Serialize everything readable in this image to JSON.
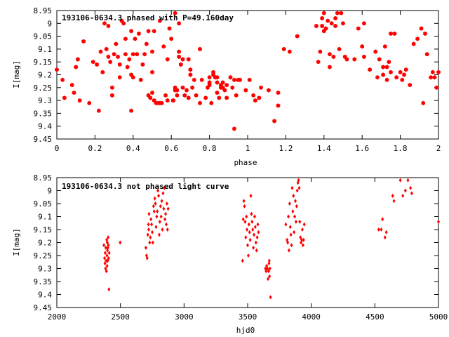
{
  "chart_data": [
    {
      "type": "scatter",
      "title": "193106-0634.3 phased with P=49.160day",
      "xlabel": "phase",
      "ylabel": "I[mag]",
      "xlim": [
        0,
        2
      ],
      "ylim": [
        8.95,
        9.45
      ],
      "y_reversed": true,
      "grid": false,
      "marker": "hexagon",
      "color": "#ff0000",
      "xticks": [
        "0",
        "0.2",
        "0.4",
        "0.6",
        "0.8",
        "1",
        "1.2",
        "1.4",
        "1.6",
        "1.8",
        "2"
      ],
      "yticks": [
        "8.95",
        "9",
        "9.05",
        "9.1",
        "9.15",
        "9.2",
        "9.25",
        "9.3",
        "9.35",
        "9.4",
        "9.45"
      ],
      "points": [
        [
          0.0,
          9.18
        ],
        [
          0.03,
          9.22
        ],
        [
          0.04,
          9.29
        ],
        [
          0.08,
          9.24
        ],
        [
          0.09,
          9.27
        ],
        [
          0.1,
          9.17
        ],
        [
          0.11,
          9.14
        ],
        [
          0.12,
          9.3
        ],
        [
          0.14,
          9.07
        ],
        [
          0.17,
          9.31
        ],
        [
          0.19,
          9.15
        ],
        [
          0.21,
          9.16
        ],
        [
          0.22,
          9.34
        ],
        [
          0.23,
          9.11
        ],
        [
          0.24,
          9.19
        ],
        [
          0.25,
          9.0
        ],
        [
          0.26,
          9.1
        ],
        [
          0.27,
          9.01
        ],
        [
          0.27,
          9.13
        ],
        [
          0.28,
          9.15
        ],
        [
          0.29,
          9.25
        ],
        [
          0.29,
          9.28
        ],
        [
          0.3,
          9.12
        ],
        [
          0.31,
          9.08
        ],
        [
          0.32,
          9.13
        ],
        [
          0.33,
          9.16
        ],
        [
          0.33,
          9.21
        ],
        [
          0.34,
          8.99
        ],
        [
          0.35,
          9.0
        ],
        [
          0.36,
          9.06
        ],
        [
          0.36,
          9.12
        ],
        [
          0.37,
          9.17
        ],
        [
          0.38,
          9.14
        ],
        [
          0.39,
          9.03
        ],
        [
          0.39,
          9.2
        ],
        [
          0.39,
          9.34
        ],
        [
          0.4,
          9.12
        ],
        [
          0.4,
          9.21
        ],
        [
          0.41,
          9.06
        ],
        [
          0.42,
          9.12
        ],
        [
          0.43,
          9.04
        ],
        [
          0.44,
          9.22
        ],
        [
          0.45,
          9.16
        ],
        [
          0.46,
          9.12
        ],
        [
          0.47,
          9.08
        ],
        [
          0.48,
          9.03
        ],
        [
          0.48,
          9.28
        ],
        [
          0.49,
          9.29
        ],
        [
          0.5,
          9.11
        ],
        [
          0.5,
          9.19
        ],
        [
          0.5,
          9.27
        ],
        [
          0.51,
          9.03
        ],
        [
          0.51,
          9.3
        ],
        [
          0.52,
          9.31
        ],
        [
          0.53,
          9.31
        ],
        [
          0.54,
          8.99
        ],
        [
          0.54,
          9.31
        ],
        [
          0.55,
          9.31
        ],
        [
          0.56,
          9.09
        ],
        [
          0.57,
          9.28
        ],
        [
          0.58,
          9.3
        ],
        [
          0.58,
          9.14
        ],
        [
          0.59,
          9.02
        ],
        [
          0.6,
          9.06
        ],
        [
          0.61,
          9.3
        ],
        [
          0.61,
          9.3
        ],
        [
          0.61,
          9.3
        ],
        [
          0.62,
          8.96
        ],
        [
          0.62,
          9.25
        ],
        [
          0.62,
          9.26
        ],
        [
          0.63,
          9.28
        ],
        [
          0.63,
          9.26
        ],
        [
          0.64,
          9.0
        ],
        [
          0.64,
          9.13
        ],
        [
          0.64,
          9.11
        ],
        [
          0.65,
          9.16
        ],
        [
          0.66,
          9.14
        ],
        [
          0.66,
          9.25
        ],
        [
          0.67,
          9.28
        ],
        [
          0.68,
          9.26
        ],
        [
          0.69,
          9.14
        ],
        [
          0.69,
          9.29
        ],
        [
          0.7,
          9.18
        ],
        [
          0.7,
          9.2
        ],
        [
          0.71,
          9.25
        ],
        [
          0.72,
          9.22
        ],
        [
          0.73,
          9.28
        ],
        [
          0.75,
          9.31
        ],
        [
          0.75,
          9.1
        ],
        [
          0.76,
          9.22
        ],
        [
          0.78,
          9.29
        ],
        [
          0.79,
          9.25
        ],
        [
          0.8,
          9.21
        ],
        [
          0.8,
          9.23
        ],
        [
          0.8,
          9.24
        ],
        [
          0.81,
          9.31
        ],
        [
          0.82,
          9.19
        ],
        [
          0.82,
          9.2
        ],
        [
          0.83,
          9.21
        ],
        [
          0.84,
          9.21
        ],
        [
          0.84,
          9.23
        ],
        [
          0.84,
          9.27
        ],
        [
          0.85,
          9.29
        ],
        [
          0.86,
          9.25
        ],
        [
          0.86,
          9.24
        ],
        [
          0.87,
          9.23
        ],
        [
          0.87,
          9.25
        ],
        [
          0.88,
          9.26
        ],
        [
          0.89,
          9.24
        ],
        [
          0.89,
          9.29
        ],
        [
          0.91,
          9.21
        ],
        [
          0.92,
          9.25
        ],
        [
          0.93,
          9.41
        ],
        [
          0.93,
          9.22
        ],
        [
          0.94,
          9.28
        ],
        [
          0.95,
          9.22
        ],
        [
          0.96,
          9.22
        ],
        [
          0.99,
          9.26
        ],
        [
          1.01,
          9.22
        ],
        [
          1.03,
          9.28
        ],
        [
          1.04,
          9.3
        ],
        [
          1.06,
          9.29
        ],
        [
          1.07,
          9.25
        ],
        [
          1.11,
          9.26
        ],
        [
          1.14,
          9.38
        ],
        [
          1.16,
          9.27
        ],
        [
          1.16,
          9.32
        ],
        [
          1.19,
          9.1
        ],
        [
          1.22,
          9.11
        ],
        [
          1.26,
          9.05
        ],
        [
          1.36,
          9.01
        ],
        [
          1.37,
          9.15
        ],
        [
          1.38,
          9.11
        ],
        [
          1.39,
          9.01
        ],
        [
          1.39,
          8.98
        ],
        [
          1.4,
          9.03
        ],
        [
          1.4,
          8.96
        ],
        [
          1.41,
          9.02
        ],
        [
          1.42,
          8.99
        ],
        [
          1.43,
          9.12
        ],
        [
          1.43,
          9.17
        ],
        [
          1.44,
          9.0
        ],
        [
          1.45,
          9.13
        ],
        [
          1.46,
          9.01
        ],
        [
          1.46,
          8.98
        ],
        [
          1.47,
          8.96
        ],
        [
          1.48,
          9.1
        ],
        [
          1.49,
          8.96
        ],
        [
          1.5,
          9.0
        ],
        [
          1.51,
          9.13
        ],
        [
          1.52,
          9.14
        ],
        [
          1.56,
          9.14
        ],
        [
          1.58,
          9.02
        ],
        [
          1.6,
          9.09
        ],
        [
          1.61,
          9.0
        ],
        [
          1.61,
          9.13
        ],
        [
          1.64,
          9.18
        ],
        [
          1.67,
          9.11
        ],
        [
          1.68,
          9.21
        ],
        [
          1.69,
          9.14
        ],
        [
          1.71,
          9.2
        ],
        [
          1.71,
          9.17
        ],
        [
          1.72,
          9.09
        ],
        [
          1.73,
          9.22
        ],
        [
          1.73,
          9.17
        ],
        [
          1.74,
          9.15
        ],
        [
          1.75,
          9.19
        ],
        [
          1.75,
          9.04
        ],
        [
          1.77,
          9.04
        ],
        [
          1.78,
          9.21
        ],
        [
          1.8,
          9.19
        ],
        [
          1.81,
          9.22
        ],
        [
          1.82,
          9.2
        ],
        [
          1.83,
          9.18
        ],
        [
          1.85,
          9.24
        ],
        [
          1.87,
          9.08
        ],
        [
          1.89,
          9.06
        ],
        [
          1.91,
          9.02
        ],
        [
          1.92,
          9.31
        ],
        [
          1.93,
          9.04
        ],
        [
          1.94,
          9.12
        ],
        [
          1.96,
          9.21
        ],
        [
          1.97,
          9.19
        ],
        [
          1.98,
          9.21
        ],
        [
          1.99,
          9.25
        ],
        [
          2.0,
          9.19
        ]
      ]
    },
    {
      "type": "scatter",
      "title": "193106-0634.3 not phased light curve",
      "xlabel": "hjd0",
      "ylabel": "I[mag]",
      "xlim": [
        2000,
        5000
      ],
      "ylim": [
        8.95,
        9.45
      ],
      "y_reversed": true,
      "grid": false,
      "marker": "diamond",
      "color": "#ff0000",
      "xticks": [
        "2000",
        "2500",
        "3000",
        "3500",
        "4000",
        "4500",
        "5000"
      ],
      "yticks": [
        "8.95",
        "9",
        "9.05",
        "9.1",
        "9.15",
        "9.2",
        "9.25",
        "9.3",
        "9.35",
        "9.4",
        "9.45"
      ],
      "points": [
        [
          2370,
          9.21
        ],
        [
          2375,
          9.26
        ],
        [
          2378,
          9.28
        ],
        [
          2380,
          9.24
        ],
        [
          2383,
          9.3
        ],
        [
          2385,
          9.22
        ],
        [
          2388,
          9.27
        ],
        [
          2390,
          9.31
        ],
        [
          2392,
          9.19
        ],
        [
          2394,
          9.25
        ],
        [
          2395,
          9.29
        ],
        [
          2397,
          9.2
        ],
        [
          2398,
          9.23
        ],
        [
          2400,
          9.27
        ],
        [
          2402,
          9.22
        ],
        [
          2403,
          9.18
        ],
        [
          2405,
          9.21
        ],
        [
          2407,
          9.26
        ],
        [
          2410,
          9.38
        ],
        [
          2412,
          9.24
        ],
        [
          2498,
          9.2
        ],
        [
          2700,
          9.22
        ],
        [
          2705,
          9.25
        ],
        [
          2710,
          9.26
        ],
        [
          2715,
          9.17
        ],
        [
          2720,
          9.13
        ],
        [
          2722,
          9.15
        ],
        [
          2725,
          9.09
        ],
        [
          2730,
          9.2
        ],
        [
          2735,
          9.18
        ],
        [
          2740,
          9.11
        ],
        [
          2745,
          9.13
        ],
        [
          2750,
          9.16
        ],
        [
          2755,
          9.2
        ],
        [
          2760,
          9.06
        ],
        [
          2765,
          9.08
        ],
        [
          2770,
          9.03
        ],
        [
          2775,
          9.05
        ],
        [
          2780,
          9.14
        ],
        [
          2785,
          9.1
        ],
        [
          2790,
          9.08
        ],
        [
          2795,
          9.0
        ],
        [
          2800,
          9.02
        ],
        [
          2805,
          9.17
        ],
        [
          2810,
          9.12
        ],
        [
          2815,
          9.06
        ],
        [
          2820,
          9.1
        ],
        [
          2825,
          9.04
        ],
        [
          2830,
          9.15
        ],
        [
          2835,
          9.01
        ],
        [
          2840,
          9.07
        ],
        [
          2845,
          8.99
        ],
        [
          2850,
          9.11
        ],
        [
          2855,
          9.09
        ],
        [
          2860,
          9.13
        ],
        [
          2865,
          9.05
        ],
        [
          2870,
          9.15
        ],
        [
          2875,
          9.07
        ],
        [
          3460,
          9.27
        ],
        [
          3465,
          9.11
        ],
        [
          3470,
          9.04
        ],
        [
          3475,
          9.06
        ],
        [
          3480,
          9.12
        ],
        [
          3485,
          9.18
        ],
        [
          3490,
          9.1
        ],
        [
          3495,
          9.15
        ],
        [
          3500,
          9.21
        ],
        [
          3505,
          9.25
        ],
        [
          3510,
          9.13
        ],
        [
          3515,
          9.16
        ],
        [
          3520,
          9.19
        ],
        [
          3525,
          9.02
        ],
        [
          3530,
          9.09
        ],
        [
          3535,
          9.12
        ],
        [
          3540,
          9.15
        ],
        [
          3545,
          9.22
        ],
        [
          3550,
          9.17
        ],
        [
          3555,
          9.1
        ],
        [
          3560,
          9.14
        ],
        [
          3565,
          9.2
        ],
        [
          3570,
          9.23
        ],
        [
          3575,
          9.18
        ],
        [
          3580,
          9.13
        ],
        [
          3585,
          9.16
        ],
        [
          3640,
          9.3
        ],
        [
          3645,
          9.31
        ],
        [
          3650,
          9.29
        ],
        [
          3655,
          9.3
        ],
        [
          3660,
          9.34
        ],
        [
          3665,
          9.31
        ],
        [
          3668,
          9.28
        ],
        [
          3670,
          9.27
        ],
        [
          3672,
          9.33
        ],
        [
          3675,
          9.3
        ],
        [
          3680,
          9.41
        ],
        [
          3800,
          9.13
        ],
        [
          3810,
          9.19
        ],
        [
          3815,
          9.2
        ],
        [
          3820,
          9.1
        ],
        [
          3825,
          9.23
        ],
        [
          3830,
          9.05
        ],
        [
          3835,
          9.14
        ],
        [
          3840,
          9.17
        ],
        [
          3845,
          9.21
        ],
        [
          3850,
          8.99
        ],
        [
          3855,
          9.08
        ],
        [
          3860,
          9.02
        ],
        [
          3865,
          9.16
        ],
        [
          3870,
          9.1
        ],
        [
          3875,
          9.04
        ],
        [
          3880,
          9.12
        ],
        [
          3885,
          9.06
        ],
        [
          3890,
          9.0
        ],
        [
          3895,
          8.97
        ],
        [
          3900,
          8.96
        ],
        [
          3905,
          8.99
        ],
        [
          3910,
          9.12
        ],
        [
          3915,
          9.18
        ],
        [
          3920,
          9.2
        ],
        [
          3925,
          9.19
        ],
        [
          3930,
          9.15
        ],
        [
          3935,
          9.21
        ],
        [
          3940,
          9.19
        ],
        [
          3945,
          9.13
        ],
        [
          4530,
          9.15
        ],
        [
          4550,
          9.15
        ],
        [
          4560,
          9.11
        ],
        [
          4580,
          9.18
        ],
        [
          4590,
          9.16
        ],
        [
          4640,
          9.02
        ],
        [
          4650,
          9.04
        ],
        [
          4700,
          8.96
        ],
        [
          4720,
          9.02
        ],
        [
          4740,
          9.0
        ],
        [
          4760,
          8.96
        ],
        [
          4780,
          8.99
        ],
        [
          4790,
          9.01
        ],
        [
          5000,
          9.12
        ]
      ]
    }
  ]
}
